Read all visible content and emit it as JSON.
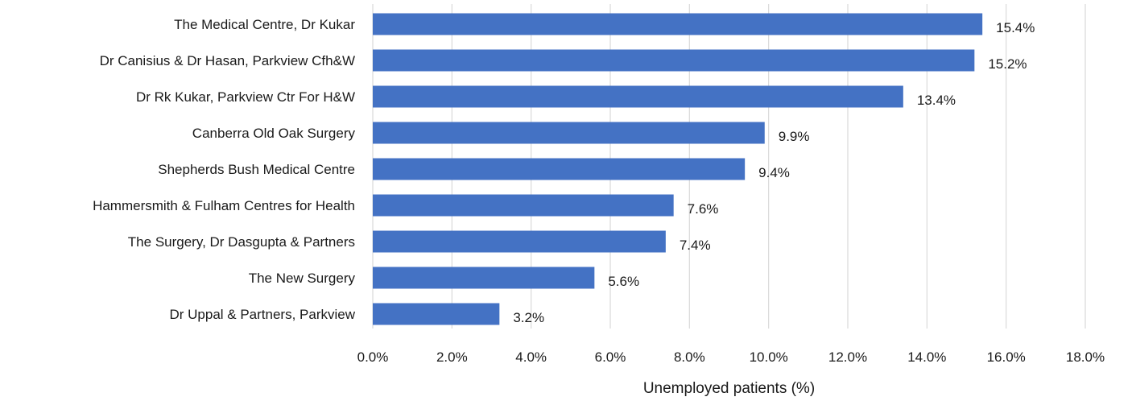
{
  "chart_data": {
    "type": "bar",
    "orientation": "horizontal",
    "categories": [
      "The Medical Centre, Dr Kukar",
      "Dr Canisius & Dr Hasan, Parkview Cfh&W",
      "Dr Rk Kukar, Parkview Ctr For H&W",
      "Canberra Old Oak Surgery",
      "Shepherds Bush Medical Centre",
      "Hammersmith & Fulham Centres for Health",
      "The Surgery, Dr Dasgupta & Partners",
      "The New Surgery",
      "Dr Uppal & Partners, Parkview"
    ],
    "values": [
      15.4,
      15.2,
      13.4,
      9.9,
      9.4,
      7.6,
      7.4,
      5.6,
      3.2
    ],
    "data_labels": [
      "15.4%",
      "15.2%",
      "13.4%",
      "9.9%",
      "9.4%",
      "7.6%",
      "7.4%",
      "5.6%",
      "3.2%"
    ],
    "xlim": [
      0,
      18
    ],
    "x_ticks": [
      0,
      2,
      4,
      6,
      8,
      10,
      12,
      14,
      16,
      18
    ],
    "x_tick_labels": [
      "0.0%",
      "2.0%",
      "4.0%",
      "6.0%",
      "8.0%",
      "10.0%",
      "12.0%",
      "14.0%",
      "16.0%",
      "18.0%"
    ],
    "xlabel": "Unemployed patients (%)",
    "ylabel": "",
    "title": "",
    "grid": "vertical",
    "legend": "none",
    "bar_color": "#4472c4"
  }
}
